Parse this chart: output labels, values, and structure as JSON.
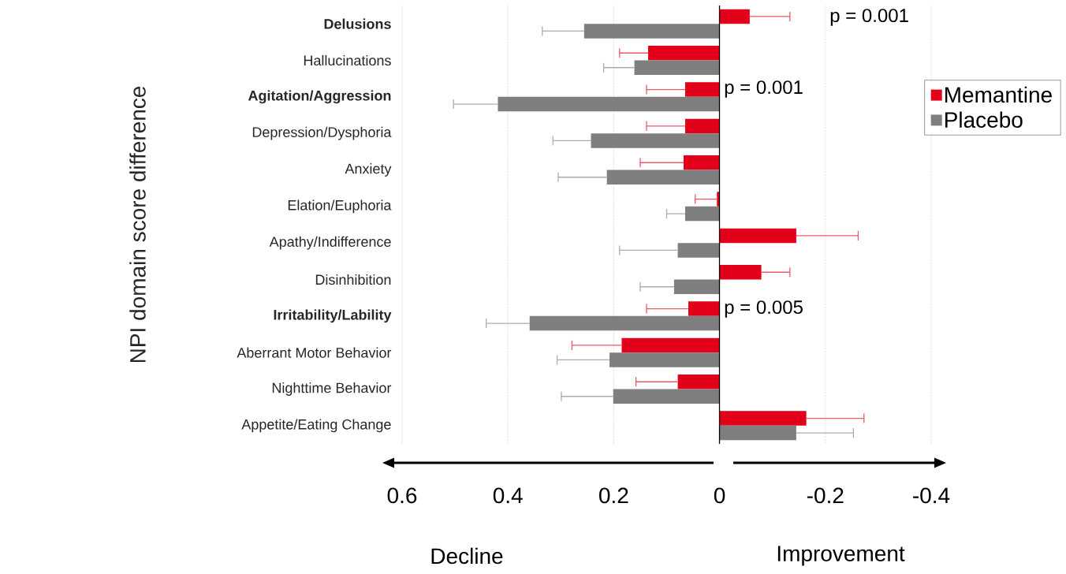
{
  "chart_data": {
    "type": "bar",
    "orientation": "horizontal",
    "ylabel": "NPI domain score difference",
    "categories": [
      "**Delusions**",
      "Hallucinations",
      "**Agitation/Aggression**",
      "Depression/Dysphoria",
      "Anxiety",
      "Elation/Euphoria",
      "Apathy/Indifference",
      "Disinhibition",
      "**Irritability/Lability**",
      "Aberrant Motor Behavior",
      "Nighttime Behavior",
      "Appetite/Eating Change"
    ],
    "series": [
      {
        "name": "Memantine",
        "color": "#e2001a",
        "values": [
          -0.057,
          0.135,
          0.065,
          0.065,
          0.068,
          0.005,
          -0.145,
          -0.079,
          0.059,
          0.185,
          0.079,
          -0.164
        ],
        "errors": [
          [
            -0.133,
            -0.057
          ],
          [
            0.135,
            0.189
          ],
          [
            0.065,
            0.138
          ],
          [
            0.065,
            0.138
          ],
          [
            0.068,
            0.15
          ],
          [
            0.005,
            0.046
          ],
          [
            -0.262,
            -0.145
          ],
          [
            -0.133,
            -0.079
          ],
          [
            0.059,
            0.138
          ],
          [
            0.185,
            0.279
          ],
          [
            0.079,
            0.158
          ],
          [
            -0.273,
            -0.164
          ]
        ]
      },
      {
        "name": "Placebo",
        "color": "#7f7f7f",
        "values": [
          0.256,
          0.161,
          0.419,
          0.243,
          0.213,
          0.065,
          0.079,
          0.086,
          0.359,
          0.208,
          0.201,
          -0.145
        ],
        "errors": [
          [
            0.256,
            0.335
          ],
          [
            0.161,
            0.219
          ],
          [
            0.419,
            0.503
          ],
          [
            0.243,
            0.315
          ],
          [
            0.213,
            0.305
          ],
          [
            0.065,
            0.1
          ],
          [
            0.079,
            0.189
          ],
          [
            0.086,
            0.15
          ],
          [
            0.359,
            0.441
          ],
          [
            0.208,
            0.307
          ],
          [
            0.201,
            0.299
          ],
          [
            -0.253,
            -0.145
          ]
        ]
      }
    ],
    "xlim": [
      0.6,
      -0.4
    ],
    "xticks": [
      0.6,
      0.4,
      0.2,
      0,
      -0.2,
      -0.4
    ],
    "grid": "x",
    "legend": "right",
    "annotations": [
      "p = 0.001",
      "p = 0.001",
      "p = 0.005",
      "Decline",
      "Improvement"
    ]
  }
}
